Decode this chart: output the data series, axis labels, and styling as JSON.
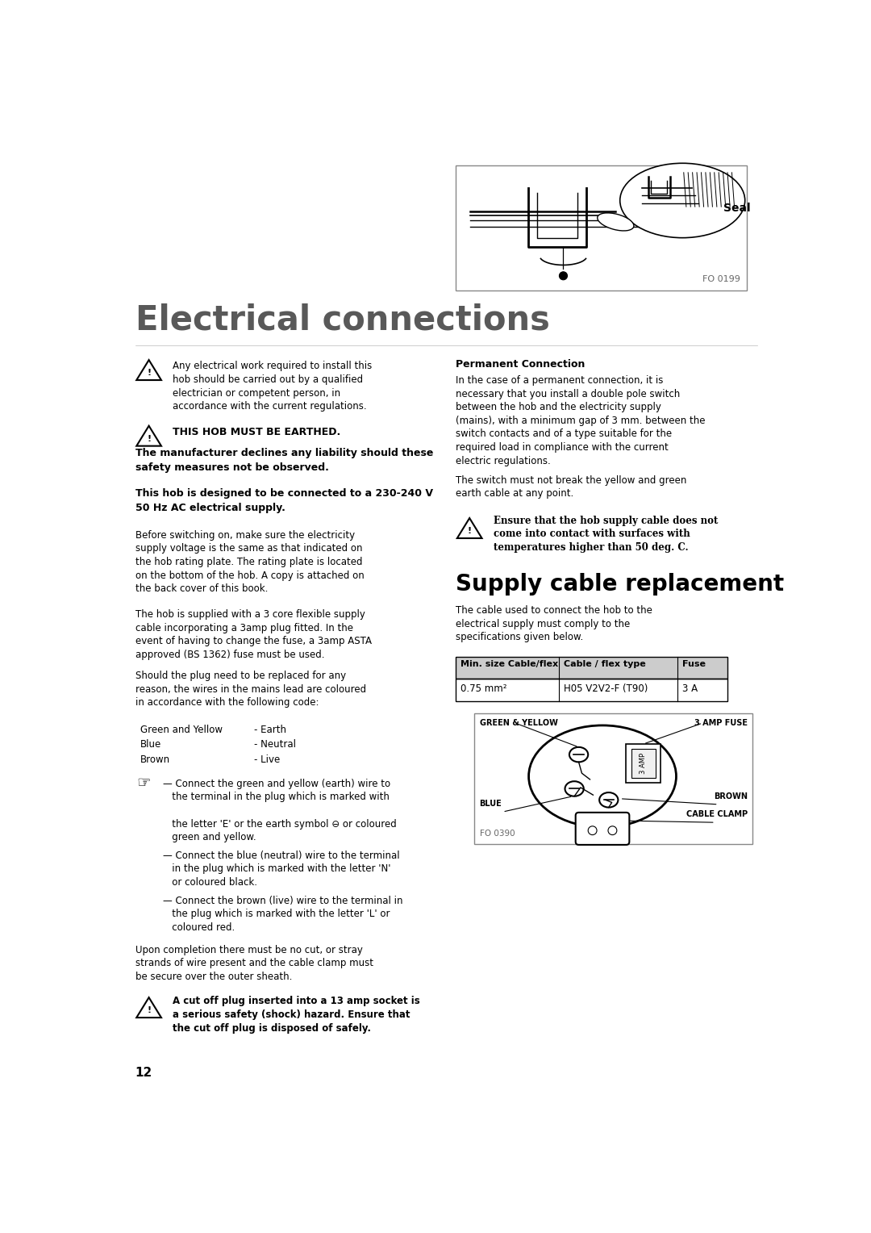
{
  "title": "Electrical connections",
  "section2_title": "Supply cable replacement",
  "bg_color": "#ffffff",
  "page_number": "12",
  "warning_text1": "Any electrical work required to install this hob should be carried out by a qualified electrician or competent person, in accordance with the current regulations.",
  "warning_text2": "THIS HOB MUST BE EARTHED.",
  "warning_text3": "The manufacturer declines any liability should these safety measures not be observed.",
  "warning_text4": "This hob is designed to be connected to a 230-240 V 50 Hz AC electrical supply.",
  "body_text1": "Before switching on, make sure the electricity supply voltage is the same as that indicated on the hob rating plate. The rating plate is located on the bottom of the hob. A copy is attached on the back cover of this book.",
  "body_text2": "The hob is supplied with a 3 core flexible supply cable incorporating a 3amp plug fitted. In the event of having to change the fuse, a 3amp ASTA approved (BS 1362) fuse must be used.",
  "body_text3": "Should the plug need to be replaced for any reason, the wires in the mains lead are coloured in accordance with the following code:",
  "wire_colors": [
    [
      "Green and Yellow",
      "- Earth"
    ],
    [
      "Blue",
      "- Neutral"
    ],
    [
      "Brown",
      "- Live"
    ]
  ],
  "instruction1_lines": [
    "— Connect the green and yellow (earth) wire to",
    "   the terminal in the plug which is marked with",
    "",
    "   the letter 'E' or the earth symbol ⊖ or coloured",
    "   green and yellow."
  ],
  "instruction2_lines": [
    "— Connect the blue (neutral) wire to the terminal",
    "   in the plug which is marked with the letter 'N'",
    "   or coloured black."
  ],
  "instruction3_lines": [
    "— Connect the brown (live) wire to the terminal in",
    "   the plug which is marked with the letter 'L' or",
    "   coloured red."
  ],
  "body_text4": "Upon completion there must be no cut, or stray strands of wire present and the cable clamp must be secure over the outer sheath.",
  "warning5_lines": [
    "A cut off plug inserted into a 13 amp socket is",
    "a serious safety (shock) hazard. Ensure that",
    "the cut off plug is disposed of safely."
  ],
  "right_perm_title": "Permanent Connection",
  "right_perm_para1": "In the case of a permanent connection, it is necessary that you install a double pole switch between the hob and the electricity supply (mains), with a minimum gap of 3 mm. between the switch contacts and of a type suitable for the required load in compliance with the current electric regulations.",
  "right_perm_para2": "The switch must not break the yellow and green earth cable at any point.",
  "right_warning_lines": [
    "Ensure that the hob supply cable does not",
    "come into contact with surfaces with",
    "temperatures higher than 50 deg. C."
  ],
  "supply_text": "The cable used to connect the hob to the electrical supply must comply to the specifications given below.",
  "table_headers": [
    "Min. size Cable/flex",
    "Cable / flex type",
    "Fuse"
  ],
  "table_row": [
    "0.75 mm²",
    "H05 V2V2-F (T90)",
    "3 A"
  ],
  "plug_label_gy": "GREEN & YELLOW",
  "plug_label_fuse": "3 AMP FUSE",
  "plug_label_blue": "BLUE",
  "plug_label_brown": "BROWN",
  "plug_label_clamp": "CABLE CLAMP",
  "fo_0199": "FO 0199",
  "fo_0390": "FO 0390",
  "title_color": "#595959",
  "body_color": "#000000"
}
